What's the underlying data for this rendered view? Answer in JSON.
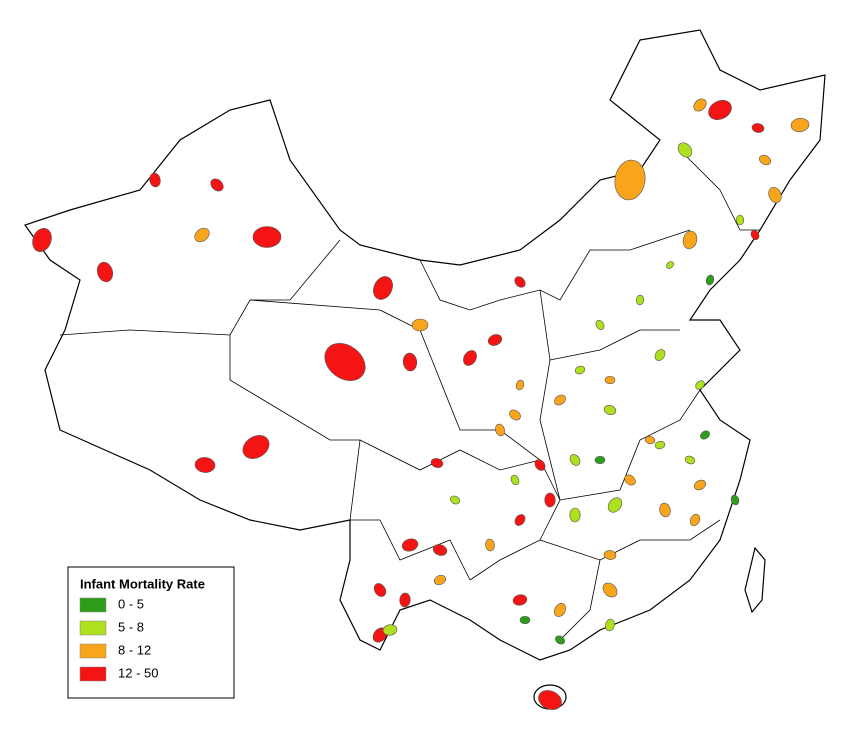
{
  "legend": {
    "title": "Infant Mortality Rate",
    "items": [
      {
        "label": "0 - 5",
        "color": "#2e9e1a"
      },
      {
        "label": "5 - 8",
        "color": "#aee01e"
      },
      {
        "label": "8 - 12",
        "color": "#f9a51c"
      },
      {
        "label": "12 - 50",
        "color": "#f51414"
      }
    ]
  }
}
